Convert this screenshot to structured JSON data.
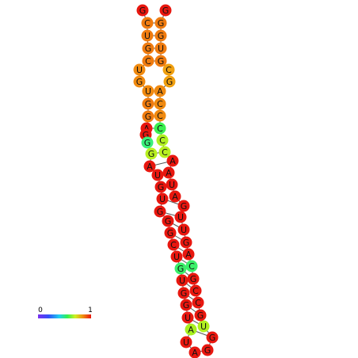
{
  "nodes": [
    {
      "label": "G",
      "color": "#e8170f"
    },
    {
      "label": "C",
      "color": "#f07c10"
    },
    {
      "label": "U",
      "color": "#f07c10"
    },
    {
      "label": "G",
      "color": "#f07c10"
    },
    {
      "label": "C",
      "color": "#f07c10"
    },
    {
      "label": "U",
      "color": "#f08a10"
    },
    {
      "label": "G",
      "color": "#f08a10"
    },
    {
      "label": "U",
      "color": "#f08a10"
    },
    {
      "label": "G",
      "color": "#f07c10"
    },
    {
      "label": "G",
      "color": "#f07c10"
    },
    {
      "label": "A",
      "color": "#e8170f"
    },
    {
      "label": "G",
      "color": "#e8170f"
    },
    {
      "label": "G",
      "color": "#3af07a"
    },
    {
      "label": "G",
      "color": "#b8f020"
    },
    {
      "label": "A",
      "color": "#e8170f"
    },
    {
      "label": "U",
      "color": "#e8170f"
    },
    {
      "label": "G",
      "color": "#e8170f"
    },
    {
      "label": "U",
      "color": "#e8170f"
    },
    {
      "label": "G",
      "color": "#e8170f"
    },
    {
      "label": "G",
      "color": "#e8170f"
    },
    {
      "label": "G",
      "color": "#e8170f"
    },
    {
      "label": "C",
      "color": "#e8170f"
    },
    {
      "label": "U",
      "color": "#e8170f"
    },
    {
      "label": "G",
      "color": "#3af06a"
    },
    {
      "label": "U",
      "color": "#e8170f"
    },
    {
      "label": "G",
      "color": "#e8170f"
    },
    {
      "label": "G",
      "color": "#e8170f"
    },
    {
      "label": "U",
      "color": "#e8170f"
    },
    {
      "label": "A",
      "color": "#a8f020"
    },
    {
      "label": "U",
      "color": "#e8170f"
    },
    {
      "label": "A",
      "color": "#e8170f"
    },
    {
      "label": "G",
      "color": "#e8170f"
    },
    {
      "label": "G",
      "color": "#e8170f"
    },
    {
      "label": "U",
      "color": "#b0f020"
    },
    {
      "label": "G",
      "color": "#e8170f"
    },
    {
      "label": "C",
      "color": "#e8170f"
    },
    {
      "label": "C",
      "color": "#e8170f"
    },
    {
      "label": "G",
      "color": "#e8170f"
    },
    {
      "label": "C",
      "color": "#3af06a"
    },
    {
      "label": "A",
      "color": "#e8170f"
    },
    {
      "label": "G",
      "color": "#e8170f"
    },
    {
      "label": "U",
      "color": "#e8170f"
    },
    {
      "label": "U",
      "color": "#e8170f"
    },
    {
      "label": "G",
      "color": "#e8170f"
    },
    {
      "label": "A",
      "color": "#e8170f"
    },
    {
      "label": "U",
      "color": "#e8170f"
    },
    {
      "label": "A",
      "color": "#e8170f"
    },
    {
      "label": "A",
      "color": "#e8170f"
    },
    {
      "label": "C",
      "color": "#b8f020"
    },
    {
      "label": "C",
      "color": "#b0f020"
    },
    {
      "label": "C",
      "color": "#3af050"
    },
    {
      "label": "C",
      "color": "#f08a10"
    },
    {
      "label": "C",
      "color": "#f08a10"
    },
    {
      "label": "A",
      "color": "#f08a10"
    },
    {
      "label": "G",
      "color": "#f0a010"
    },
    {
      "label": "C",
      "color": "#f0a010"
    },
    {
      "label": "G",
      "color": "#f07c10"
    },
    {
      "label": "U",
      "color": "#f07c10"
    },
    {
      "label": "G",
      "color": "#f07c10"
    },
    {
      "label": "G",
      "color": "#f07c10"
    },
    {
      "label": "G",
      "color": "#e8170f"
    }
  ],
  "legend": {
    "min_label": "0",
    "max_label": "1"
  }
}
